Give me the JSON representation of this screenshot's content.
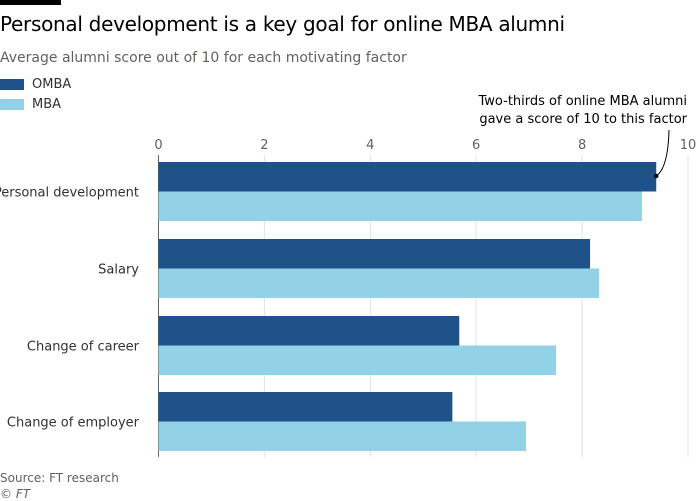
{
  "title": "Personal development is a key goal for online MBA alumni",
  "subtitle": "Average alumni score out of 10 for each motivating factor",
  "source": "Source: FT research",
  "copyright": "© FT",
  "chart_data": {
    "type": "bar",
    "orientation": "horizontal",
    "categories": [
      "Personal development",
      "Salary",
      "Change of career",
      "Change of employer"
    ],
    "series": [
      {
        "name": "OMBA",
        "color": "#1f5289",
        "values": [
          9.4,
          8.15,
          5.68,
          5.55
        ]
      },
      {
        "name": "MBA",
        "color": "#93d1e6",
        "values": [
          9.13,
          8.32,
          7.51,
          6.94
        ]
      }
    ],
    "xlim": [
      0,
      10
    ],
    "xticks": [
      "0",
      "2",
      "4",
      "6",
      "8",
      "10"
    ],
    "grid": true,
    "legend": "top-left",
    "annotation": [
      "Two-thirds of online MBA alumni",
      "gave a score of 10 to this factor"
    ]
  }
}
